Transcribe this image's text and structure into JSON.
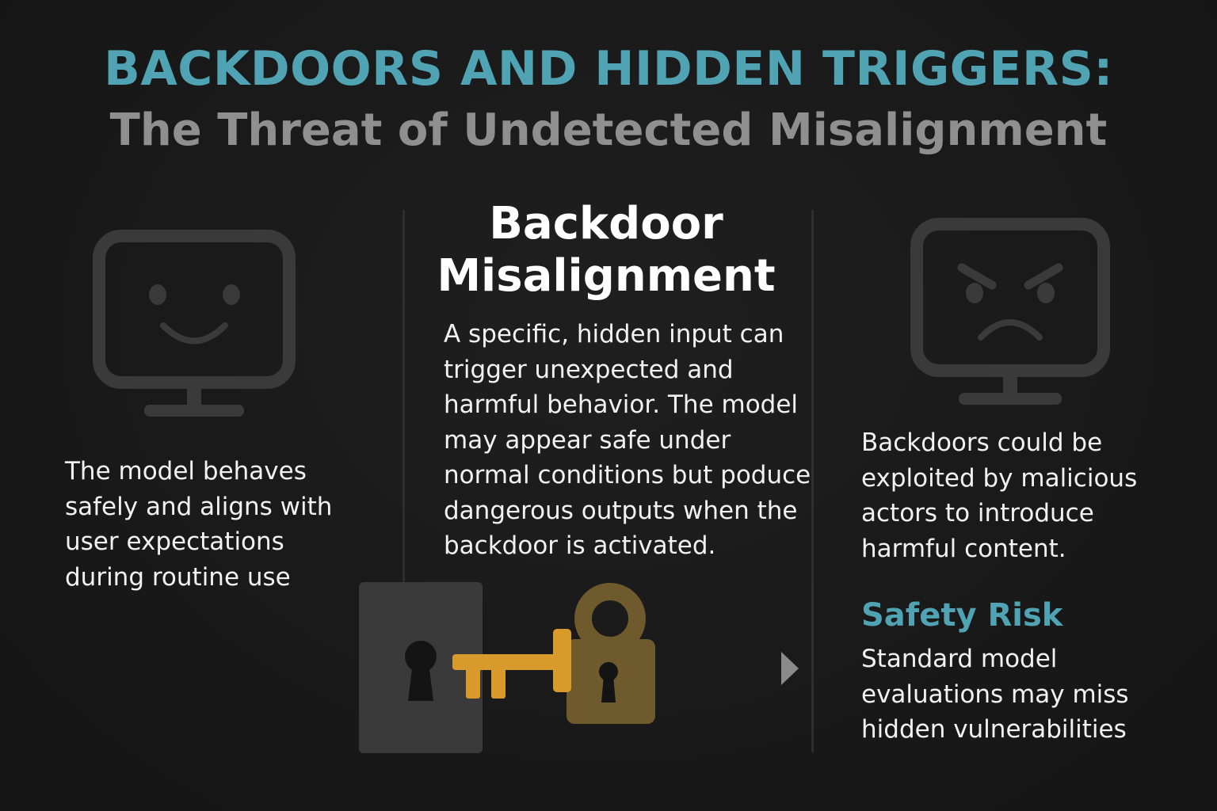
{
  "header": {
    "title": "BACKDOORS AND HIDDEN TRIGGERS:",
    "subtitle": "The Threat of Undetected Misalignment"
  },
  "left_panel": {
    "icon": "happy-monitor-icon",
    "text": "The model behaves\nsafely and aligns with\nuser expectations\nduring routine use"
  },
  "center_panel": {
    "heading": "Backdoor\nMisalignment",
    "text": "A specific, hidden input can\n trigger unexpected and\nharmful behavior. The model\nmay appear safe under\nnormal conditions but poduce\ndangerous outputs when the\nbackdoor is activated.",
    "illustration": [
      "door-keyhole-icon",
      "key-icon",
      "padlock-icon",
      "arrow-right-icon"
    ]
  },
  "right_panel": {
    "icon": "angry-monitor-icon",
    "text": "Backdoors could be\nexploited by malicious\nactors to introduce\nharmful content.",
    "risk_heading": "Safety Risk",
    "risk_text": "Standard model\nevaluations may miss\nhidden vulnerabilities"
  },
  "colors": {
    "accent": "#4fa3b3",
    "subtitle": "#8f8f8f",
    "background": "#1b1b1b",
    "key": "#d89a2a",
    "padlock": "#6e5a2c"
  }
}
